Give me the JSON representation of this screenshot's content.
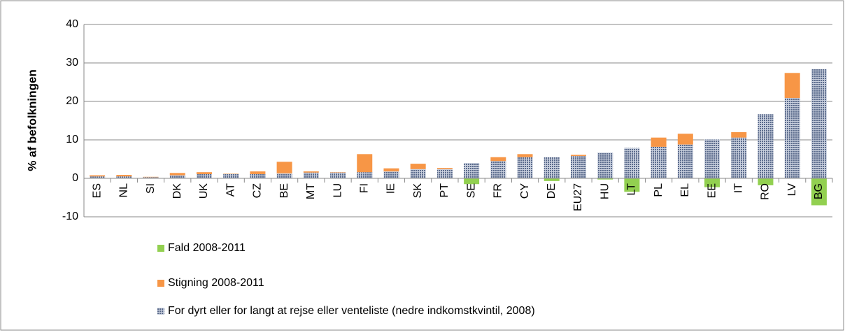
{
  "chart_data": {
    "type": "bar",
    "stacked": true,
    "y_label": "% af befolkningen",
    "categories": [
      "ES",
      "NL",
      "SI",
      "DK",
      "UK",
      "AT",
      "CZ",
      "BE",
      "MT",
      "LU",
      "FI",
      "IE",
      "SK",
      "PT",
      "SE",
      "FR",
      "CY",
      "DE",
      "EU27",
      "HU",
      "LT",
      "PL",
      "EL",
      "EE",
      "IT",
      "RO",
      "LV",
      "BG"
    ],
    "series": [
      {
        "name": "For dyrt eller for langt at rejse eller venteliste (nedre indkomstkvintil, 2008)",
        "color": "#5b6b8c",
        "values": [
          0.5,
          0.5,
          0.3,
          0.8,
          1.1,
          1.1,
          1.1,
          1.3,
          1.5,
          1.5,
          1.6,
          1.8,
          2.4,
          2.4,
          4.0,
          4.5,
          5.5,
          5.5,
          5.8,
          6.7,
          7.9,
          8.2,
          8.8,
          10.1,
          10.6,
          16.7,
          20.9,
          28.4
        ]
      },
      {
        "name": "Stigning 2008-2011",
        "color": "#f79646",
        "values": [
          0.3,
          0.4,
          0.1,
          0.6,
          0.5,
          0.1,
          0.7,
          3.0,
          0.3,
          0.1,
          4.7,
          0.8,
          1.4,
          0.3,
          0,
          1.0,
          0.8,
          0,
          0.3,
          0,
          0,
          2.4,
          2.8,
          0,
          1.4,
          0,
          6.5,
          0
        ]
      },
      {
        "name": "Fald 2008-2011",
        "color": "#92d050",
        "values": [
          0,
          0,
          0,
          0,
          0,
          0,
          0,
          0,
          0,
          0,
          0,
          0,
          0,
          0,
          -1.5,
          0,
          0,
          -0.7,
          0,
          -0.3,
          -3.5,
          0,
          0,
          -2.3,
          0,
          -1.8,
          0,
          -7.0
        ]
      }
    ],
    "ylim": [
      -10,
      40
    ],
    "yticks": [
      -10,
      0,
      10,
      20,
      30,
      40
    ],
    "grid": true
  }
}
